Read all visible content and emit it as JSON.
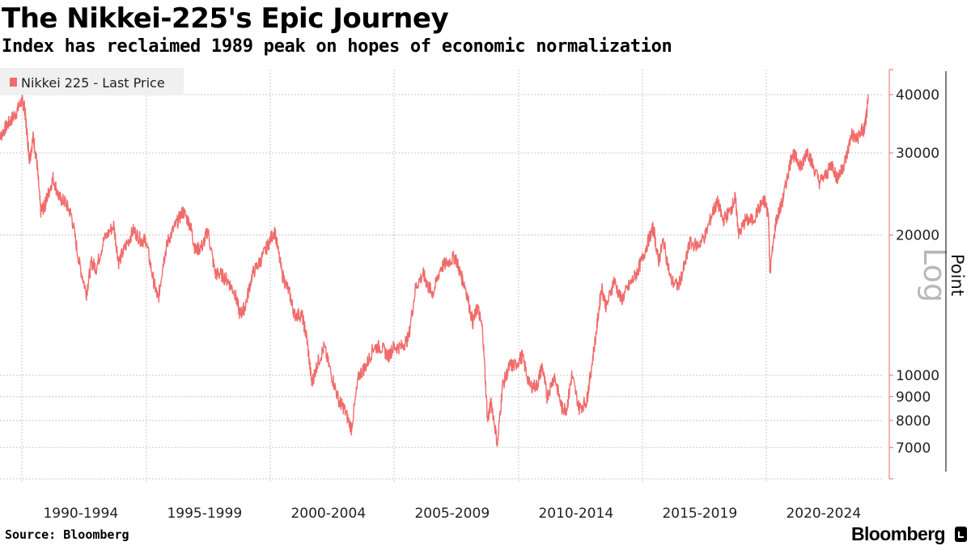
{
  "title": "The Nikkei-225's Epic Journey",
  "subtitle": "Index has reclaimed 1989 peak on hopes of economic normalization",
  "source": "Source: Bloomberg",
  "brand": "Bloomberg",
  "colors": {
    "series": "#f06b6b",
    "grid": "#c8c8c8",
    "axis": "#f06b6b",
    "legend_bg": "#f0f0f0"
  },
  "chart_data": {
    "type": "line",
    "title": "The Nikkei-225's Epic Journey",
    "subtitle": "Index has reclaimed 1989 peak on hopes of economic normalization",
    "ylabel": "Point",
    "yscale_label": "Log",
    "yscale": "log",
    "ylim": [
      6000,
      45000
    ],
    "y_ticks": [
      {
        "value": 7000,
        "label": "7000"
      },
      {
        "value": 8000,
        "label": "8000"
      },
      {
        "value": 9000,
        "label": "9000"
      },
      {
        "value": 10000,
        "label": "10000"
      },
      {
        "value": 20000,
        "label": "20000"
      },
      {
        "value": 30000,
        "label": "30000"
      },
      {
        "value": 40000,
        "label": "40000"
      }
    ],
    "xlim": [
      1989.0,
      2024.5
    ],
    "x_ticks": [
      {
        "label": "1990-1994",
        "start": 1990,
        "end": 1995
      },
      {
        "label": "1995-1999",
        "start": 1995,
        "end": 2000
      },
      {
        "label": "2000-2004",
        "start": 2000,
        "end": 2005
      },
      {
        "label": "2005-2009",
        "start": 2005,
        "end": 2010
      },
      {
        "label": "2010-2014",
        "start": 2010,
        "end": 2015
      },
      {
        "label": "2015-2019",
        "start": 2015,
        "end": 2020
      },
      {
        "label": "2020-2024",
        "start": 2020,
        "end": 2025
      }
    ],
    "grid": true,
    "legend_position": "top-left",
    "series": [
      {
        "name": "Nikkei 225 - Last Price",
        "points": [
          [
            1989.0,
            31500
          ],
          [
            1989.25,
            33500
          ],
          [
            1989.5,
            35000
          ],
          [
            1989.75,
            36500
          ],
          [
            1989.99,
            38900
          ],
          [
            1990.1,
            37500
          ],
          [
            1990.2,
            33000
          ],
          [
            1990.3,
            29000
          ],
          [
            1990.45,
            32500
          ],
          [
            1990.6,
            28500
          ],
          [
            1990.75,
            22500
          ],
          [
            1990.9,
            23000
          ],
          [
            1991.0,
            24000
          ],
          [
            1991.25,
            26500
          ],
          [
            1991.5,
            24000
          ],
          [
            1991.75,
            23500
          ],
          [
            1992.0,
            22000
          ],
          [
            1992.3,
            17500
          ],
          [
            1992.6,
            15000
          ],
          [
            1992.8,
            17500
          ],
          [
            1993.0,
            17000
          ],
          [
            1993.3,
            19500
          ],
          [
            1993.7,
            21000
          ],
          [
            1993.9,
            17500
          ],
          [
            1994.2,
            19000
          ],
          [
            1994.5,
            20500
          ],
          [
            1994.8,
            19500
          ],
          [
            1995.0,
            19500
          ],
          [
            1995.3,
            16000
          ],
          [
            1995.5,
            14500
          ],
          [
            1995.7,
            17500
          ],
          [
            1995.9,
            19500
          ],
          [
            1996.2,
            21000
          ],
          [
            1996.5,
            22500
          ],
          [
            1996.8,
            21000
          ],
          [
            1997.0,
            18500
          ],
          [
            1997.3,
            19000
          ],
          [
            1997.5,
            20500
          ],
          [
            1997.8,
            16500
          ],
          [
            1998.0,
            16500
          ],
          [
            1998.3,
            16000
          ],
          [
            1998.6,
            15000
          ],
          [
            1998.8,
            13500
          ],
          [
            1999.0,
            14000
          ],
          [
            1999.3,
            16500
          ],
          [
            1999.6,
            17500
          ],
          [
            1999.9,
            18900
          ],
          [
            2000.2,
            20500
          ],
          [
            2000.5,
            16500
          ],
          [
            2000.8,
            15000
          ],
          [
            2001.0,
            13500
          ],
          [
            2001.3,
            13500
          ],
          [
            2001.5,
            12000
          ],
          [
            2001.7,
            9600
          ],
          [
            2001.9,
            10500
          ],
          [
            2002.2,
            11500
          ],
          [
            2002.5,
            10000
          ],
          [
            2002.8,
            8800
          ],
          [
            2003.0,
            8500
          ],
          [
            2003.3,
            7700
          ],
          [
            2003.6,
            10000
          ],
          [
            2003.9,
            10500
          ],
          [
            2004.2,
            11500
          ],
          [
            2004.5,
            11500
          ],
          [
            2004.8,
            11000
          ],
          [
            2005.0,
            11500
          ],
          [
            2005.3,
            11500
          ],
          [
            2005.6,
            12000
          ],
          [
            2005.9,
            15500
          ],
          [
            2006.2,
            16500
          ],
          [
            2006.4,
            15500
          ],
          [
            2006.6,
            15000
          ],
          [
            2006.9,
            17000
          ],
          [
            2007.2,
            17500
          ],
          [
            2007.5,
            18000
          ],
          [
            2007.7,
            16500
          ],
          [
            2007.9,
            15500
          ],
          [
            2008.2,
            13000
          ],
          [
            2008.4,
            14000
          ],
          [
            2008.6,
            12500
          ],
          [
            2008.8,
            8000
          ],
          [
            2008.95,
            8800
          ],
          [
            2009.2,
            7100
          ],
          [
            2009.4,
            9500
          ],
          [
            2009.7,
            10500
          ],
          [
            2009.9,
            10500
          ],
          [
            2010.2,
            11000
          ],
          [
            2010.5,
            9500
          ],
          [
            2010.8,
            9500
          ],
          [
            2011.0,
            10500
          ],
          [
            2011.2,
            9000
          ],
          [
            2011.5,
            10000
          ],
          [
            2011.8,
            8500
          ],
          [
            2012.0,
            8500
          ],
          [
            2012.2,
            10000
          ],
          [
            2012.5,
            8500
          ],
          [
            2012.8,
            8800
          ],
          [
            2012.95,
            10000
          ],
          [
            2013.2,
            12500
          ],
          [
            2013.4,
            15500
          ],
          [
            2013.6,
            14000
          ],
          [
            2013.9,
            16000
          ],
          [
            2014.2,
            14500
          ],
          [
            2014.5,
            15500
          ],
          [
            2014.8,
            16500
          ],
          [
            2015.0,
            17500
          ],
          [
            2015.3,
            19500
          ],
          [
            2015.5,
            20800
          ],
          [
            2015.7,
            17500
          ],
          [
            2015.9,
            19500
          ],
          [
            2016.2,
            16000
          ],
          [
            2016.5,
            15500
          ],
          [
            2016.8,
            17500
          ],
          [
            2016.95,
            19200
          ],
          [
            2017.3,
            19000
          ],
          [
            2017.6,
            20000
          ],
          [
            2017.9,
            22500
          ],
          [
            2018.1,
            23500
          ],
          [
            2018.3,
            21500
          ],
          [
            2018.6,
            22500
          ],
          [
            2018.8,
            24000
          ],
          [
            2018.95,
            20000
          ],
          [
            2019.2,
            21500
          ],
          [
            2019.5,
            21500
          ],
          [
            2019.8,
            23000
          ],
          [
            2019.99,
            23700
          ],
          [
            2020.15,
            22000
          ],
          [
            2020.2,
            16600
          ],
          [
            2020.45,
            21500
          ],
          [
            2020.7,
            23500
          ],
          [
            2020.9,
            26500
          ],
          [
            2021.1,
            30000
          ],
          [
            2021.3,
            29000
          ],
          [
            2021.5,
            28000
          ],
          [
            2021.7,
            30500
          ],
          [
            2021.9,
            28500
          ],
          [
            2022.2,
            26000
          ],
          [
            2022.5,
            27000
          ],
          [
            2022.7,
            28500
          ],
          [
            2022.9,
            26500
          ],
          [
            2023.1,
            27500
          ],
          [
            2023.3,
            29500
          ],
          [
            2023.5,
            33000
          ],
          [
            2023.7,
            32000
          ],
          [
            2023.9,
            33500
          ],
          [
            2024.0,
            33500
          ],
          [
            2024.1,
            36000
          ],
          [
            2024.17,
            38900
          ]
        ]
      }
    ]
  }
}
